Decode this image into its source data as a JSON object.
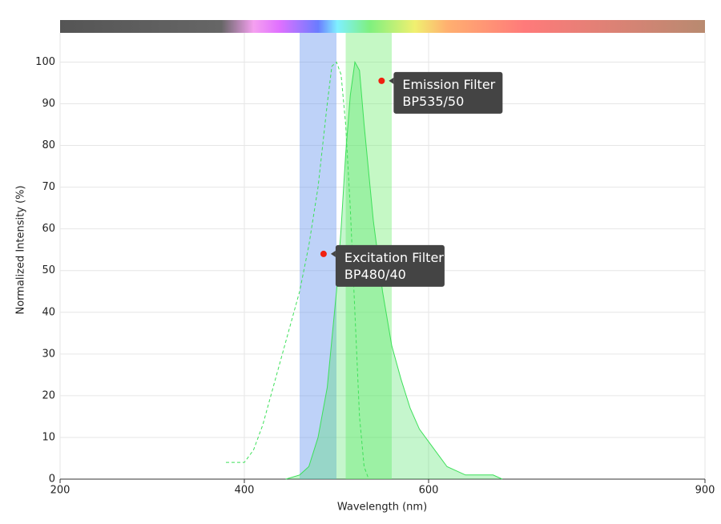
{
  "chart_data": {
    "type": "line",
    "x_label": "Wavelength (nm)",
    "y_label": "Normalized Intensity (%)",
    "xlim": [
      200,
      900
    ],
    "ylim": [
      0,
      107
    ],
    "xticks": [
      200,
      400,
      600,
      900
    ],
    "yticks": [
      0,
      10,
      20,
      30,
      40,
      50,
      60,
      70,
      80,
      90,
      100
    ],
    "grid": true,
    "filters": [
      {
        "range": [
          460,
          500
        ],
        "color": "#6f9cf0"
      },
      {
        "range": [
          510,
          560
        ],
        "color": "#7ff07f"
      }
    ],
    "series": [
      {
        "style": "dashed",
        "color": "#3ee05a",
        "x": [
          380,
          390,
          400,
          410,
          420,
          430,
          440,
          450,
          460,
          470,
          480,
          490,
          495,
          500,
          505,
          510,
          515,
          520,
          525,
          530,
          535
        ],
        "values": [
          4,
          4,
          4,
          7,
          13,
          21,
          29,
          37,
          45,
          56,
          70,
          90,
          99,
          100,
          97,
          85,
          65,
          40,
          15,
          3,
          0
        ]
      },
      {
        "style": "filled",
        "color": "#3ee05a",
        "x": [
          445,
          460,
          470,
          480,
          490,
          500,
          505,
          510,
          515,
          520,
          525,
          530,
          540,
          550,
          560,
          570,
          580,
          590,
          600,
          610,
          620,
          630,
          640,
          650,
          670,
          680
        ],
        "values": [
          0,
          1,
          3,
          10,
          22,
          45,
          60,
          78,
          92,
          100,
          98,
          85,
          62,
          45,
          32,
          24,
          17,
          12,
          9,
          6,
          3,
          2,
          1,
          1,
          1,
          0
        ]
      }
    ],
    "annotations": [
      {
        "x": 549,
        "y": 95.5,
        "lines": [
          "Emission Filter",
          "BP535/50"
        ]
      },
      {
        "x": 486,
        "y": 54,
        "lines": [
          "Excitation Filter",
          "BP480/40"
        ]
      }
    ]
  }
}
